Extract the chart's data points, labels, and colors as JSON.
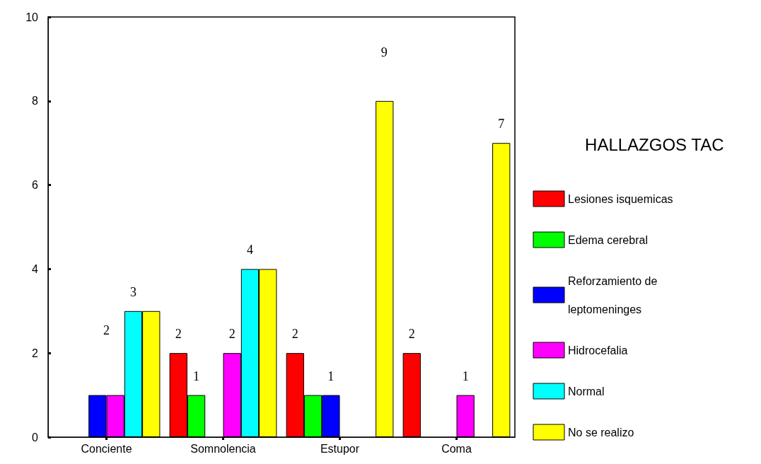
{
  "chart_data": {
    "type": "bar",
    "categories": [
      "Conciente",
      "Somnolencia",
      "Estupor",
      "Coma"
    ],
    "legend_title": "HALLAZGOS TAC",
    "annotations": [
      "2",
      "9"
    ],
    "legend": "right",
    "grid": false,
    "ylim": [
      0,
      10
    ],
    "yticks": [
      0,
      2,
      4,
      6,
      8,
      10
    ],
    "series": [
      {
        "name": "Lesiones isquemicas",
        "color": "#ff0000",
        "values": [
          null,
          2,
          2,
          2
        ],
        "value_labels": [
          null,
          "2",
          "2",
          "2"
        ]
      },
      {
        "name": "Edema cerebral",
        "color": "#00ff00",
        "values": [
          null,
          1,
          1,
          null
        ],
        "value_labels": [
          null,
          "1",
          null,
          null
        ]
      },
      {
        "name": "Reforzamiento de leptomeninges",
        "color": "#0000ff",
        "values": [
          1,
          null,
          1,
          null
        ],
        "value_labels": [
          null,
          null,
          "1",
          null
        ]
      },
      {
        "name": "Hidrocefalia",
        "color": "#ff00ff",
        "values": [
          1,
          2,
          null,
          1
        ],
        "value_labels": [
          null,
          "2",
          null,
          "1"
        ]
      },
      {
        "name": "Normal",
        "color": "#00ffff",
        "values": [
          3,
          4,
          null,
          null
        ],
        "value_labels": [
          "3",
          "4",
          null,
          null
        ]
      },
      {
        "name": "No se realizo",
        "color": "#ffff00",
        "values": [
          3,
          4,
          8,
          7
        ],
        "value_labels": [
          null,
          null,
          null,
          "7"
        ]
      }
    ]
  }
}
